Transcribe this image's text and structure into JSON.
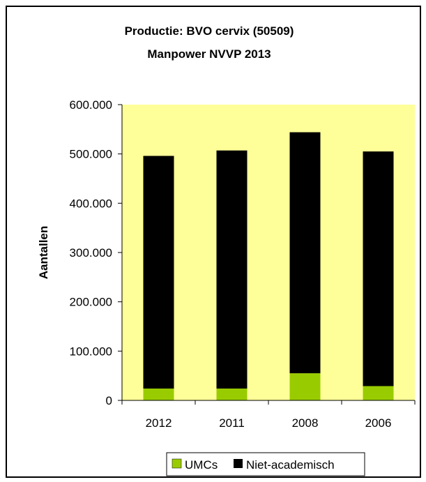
{
  "chart_data": {
    "type": "bar",
    "stacked": true,
    "title": [
      "Productie: BVO cervix (50509)",
      "Manpower NVVP 2013"
    ],
    "xlabel": "",
    "ylabel": "Aantallen",
    "categories": [
      "2012",
      "2011",
      "2008",
      "2006"
    ],
    "ylim": [
      0,
      600000
    ],
    "yticks": [
      0,
      100000,
      200000,
      300000,
      400000,
      500000,
      600000
    ],
    "ytick_labels": [
      "0",
      "100.000",
      "200.000",
      "300.000",
      "400.000",
      "500.000",
      "600.000"
    ],
    "series": [
      {
        "name": "UMCs",
        "color": "#99cc00",
        "values": [
          24000,
          24000,
          55000,
          29000
        ]
      },
      {
        "name": "Niet-academisch",
        "color": "#000000",
        "values": [
          472000,
          483000,
          489000,
          476000
        ]
      }
    ],
    "plot_background": "#ffff99",
    "grid": false,
    "legend_position": "bottom"
  }
}
